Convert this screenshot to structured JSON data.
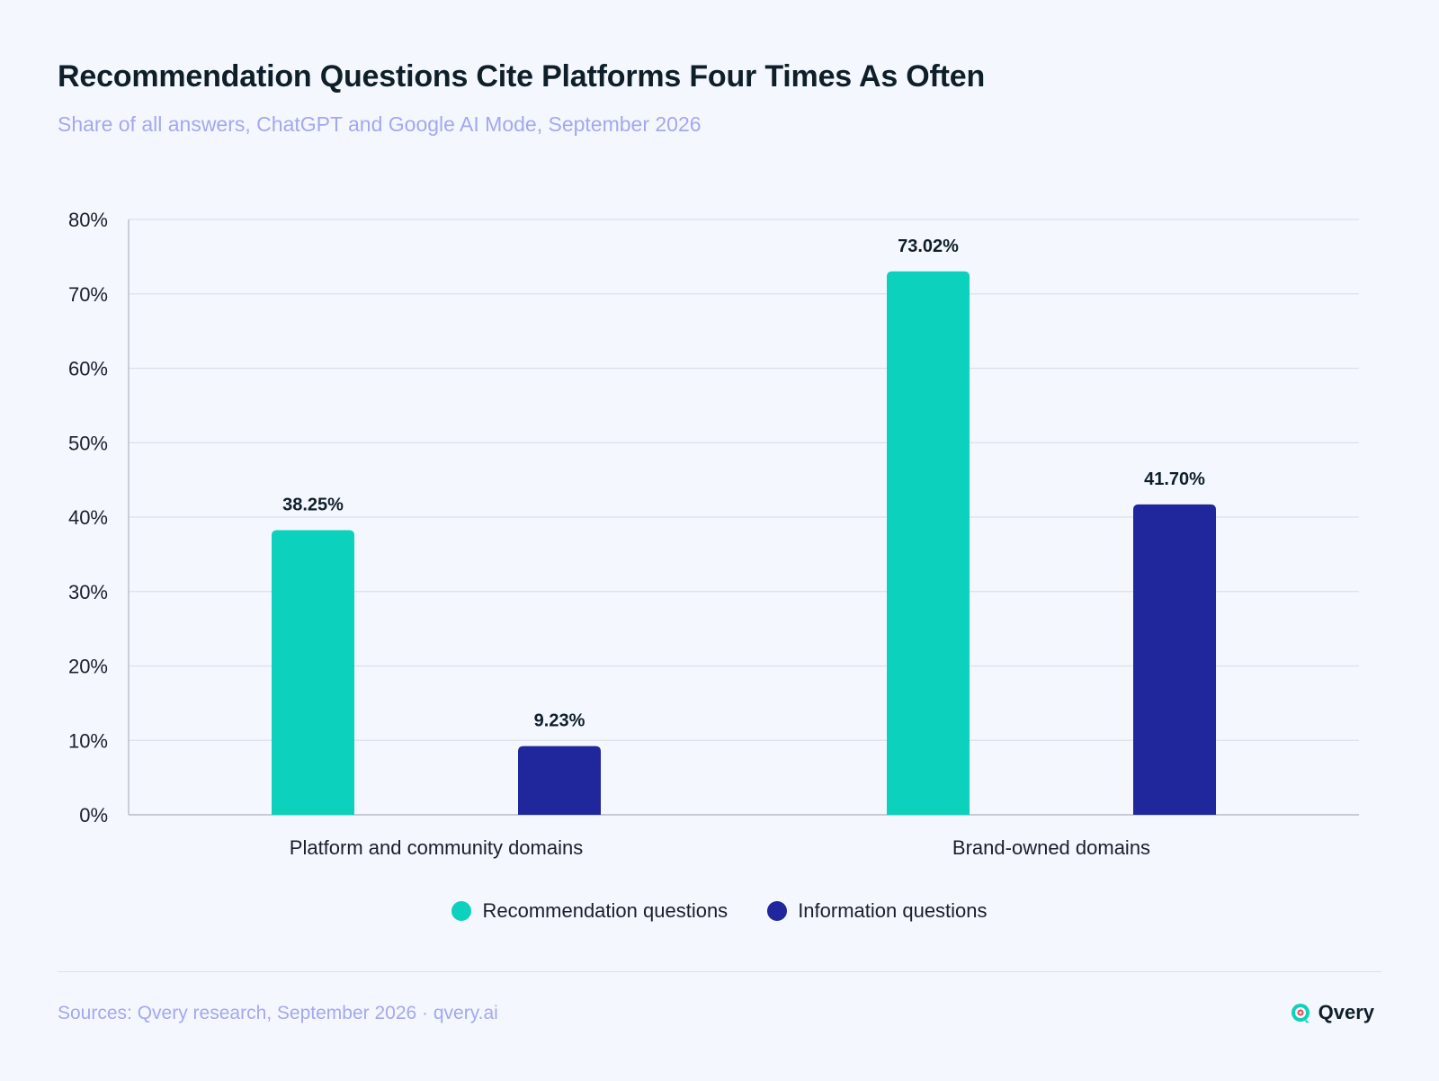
{
  "header": {
    "title": "Recommendation Questions Cite Platforms Four Times As Often",
    "subtitle": "Share of all answers, ChatGPT and Google AI Mode, September 2026"
  },
  "colors": {
    "recommendation": "#0bd1bd",
    "information": "#20269b",
    "grid": "#dde0ea",
    "axis": "#b9bcc6",
    "background": "#f4f7fe"
  },
  "chart_data": {
    "type": "bar",
    "categories": [
      "Platform and community domains",
      "Brand-owned domains"
    ],
    "series": [
      {
        "name": "Recommendation questions",
        "values": [
          38.25,
          73.02
        ],
        "labels": [
          "38.25%",
          "73.02%"
        ],
        "color": "#0bd1bd"
      },
      {
        "name": "Information questions",
        "values": [
          9.23,
          41.7
        ],
        "labels": [
          "9.23%",
          "41.70%"
        ],
        "color": "#20269b"
      }
    ],
    "ylim": [
      0,
      80
    ],
    "yticks": [
      0,
      10,
      20,
      30,
      40,
      50,
      60,
      70,
      80
    ],
    "ytick_labels": [
      "0%",
      "10%",
      "20%",
      "30%",
      "40%",
      "50%",
      "60%",
      "70%",
      "80%"
    ],
    "grid": true,
    "legend": "bottom-center",
    "title": "Recommendation Questions Cite Platforms Four Times As Often",
    "subtitle": "Share of all answers, ChatGPT and Google AI Mode, September 2026",
    "xlabel": "",
    "ylabel": ""
  },
  "legend": {
    "items": [
      {
        "label": "Recommendation questions",
        "color": "#0bd1bd"
      },
      {
        "label": "Information questions",
        "color": "#20269b"
      }
    ]
  },
  "footer": {
    "source": "Sources: Qvery research, September 2026 · qvery.ai",
    "brand": "Qvery",
    "brand_icon": "qvery-logo-icon"
  }
}
